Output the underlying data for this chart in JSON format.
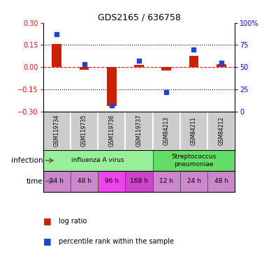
{
  "title": "GDS2165 / 636758",
  "samples": [
    "GSM119734",
    "GSM119735",
    "GSM119736",
    "GSM119737",
    "GSM84213",
    "GSM84211",
    "GSM84212"
  ],
  "log_ratios": [
    0.155,
    -0.02,
    -0.265,
    0.015,
    -0.025,
    0.075,
    0.02
  ],
  "percentile_ranks": [
    87,
    53,
    7,
    57,
    22,
    70,
    55
  ],
  "ylim_left": [
    -0.3,
    0.3
  ],
  "ylim_right": [
    0,
    100
  ],
  "yticks_left": [
    -0.3,
    -0.15,
    0,
    0.15,
    0.3
  ],
  "yticks_right": [
    0,
    25,
    50,
    75,
    100
  ],
  "hlines_dotted": [
    0.15,
    -0.15
  ],
  "bar_color": "#cc2200",
  "scatter_color": "#2244cc",
  "bg_color": "#ffffff",
  "infection_groups": [
    {
      "label": "influenza A virus",
      "start": 0,
      "end": 4,
      "color": "#99ee99"
    },
    {
      "label": "Streptococcus\npneumoniae",
      "start": 4,
      "end": 7,
      "color": "#66dd66"
    }
  ],
  "time_labels": [
    "24 h",
    "48 h",
    "96 h",
    "168 h",
    "12 h",
    "24 h",
    "48 h"
  ],
  "time_colors": [
    "#cc88cc",
    "#cc88cc",
    "#ee44ee",
    "#cc44cc",
    "#cc88cc",
    "#cc88cc",
    "#cc88cc"
  ],
  "infection_row_label": "infection",
  "time_row_label": "time",
  "legend_log_ratio": "log ratio",
  "legend_percentile": "percentile rank within the sample",
  "bar_width": 0.35,
  "scatter_size": 22
}
